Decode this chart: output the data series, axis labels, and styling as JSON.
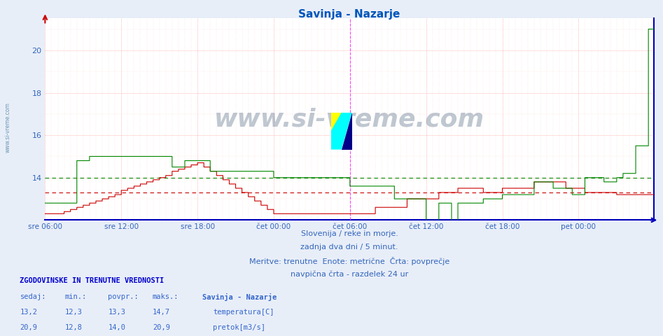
{
  "title": "Savinja - Nazarje",
  "title_color": "#0055bb",
  "bg_color": "#e8eef8",
  "plot_bg_color": "#ffffff",
  "ylim": [
    12.0,
    21.5
  ],
  "yticks": [
    14,
    16,
    18,
    20
  ],
  "temp_color": "#cc0000",
  "flow_color": "#008800",
  "avg_temp": 13.3,
  "avg_flow": 14.0,
  "vline_color": "#ff44ff",
  "n_points": 576,
  "xlabel_labels": [
    "sre 06:00",
    "sre 12:00",
    "sre 18:00",
    "čet 00:00",
    "čet 06:00",
    "čet 12:00",
    "čet 18:00",
    "pet 00:00",
    ""
  ],
  "footer_line1": "Slovenija / reke in morje.",
  "footer_line2": "zadnja dva dni / 5 minut.",
  "footer_line3": "Meritve: trenutne  Enote: metrične  Črta: povprečje",
  "footer_line4": "navpična črta - razdelek 24 ur",
  "footer_color": "#3366bb",
  "stats_header": "ZGODOVINSKE IN TRENUTNE VREDNOSTI",
  "stats_color": "#0000cc",
  "col_sedaj": "sedaj:",
  "col_min": "min.:",
  "col_povpr": "povpr.:",
  "col_maks": "maks.:",
  "col_name": "Savinja - Nazarje",
  "temp_sedaj": "13,2",
  "temp_min": "12,3",
  "temp_povpr": "13,3",
  "temp_maks": "14,7",
  "flow_sedaj": "20,9",
  "flow_min": "12,8",
  "flow_povpr": "14,0",
  "flow_maks": "20,9",
  "watermark": "www.si-vreme.com",
  "watermark_color": "#1a3a5c",
  "left_watermark": "www.si-vreme.com",
  "left_watermark_color": "#5588aa"
}
